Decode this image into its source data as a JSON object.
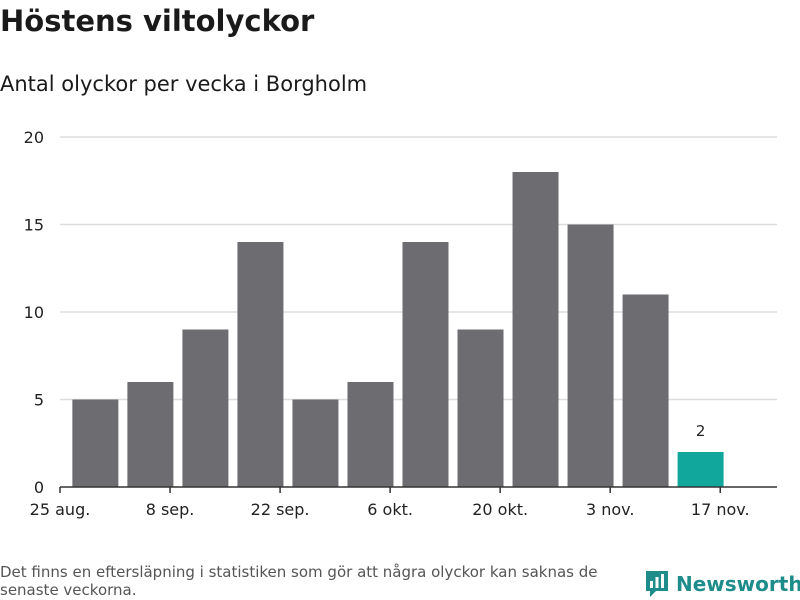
{
  "title": "Höstens viltolyckor",
  "subtitle": "Antal olyckor per vecka i Borgholm",
  "footnote": "Det finns en eftersläpning i statistiken som gör att några olyckor kan saknas de senaste veckorna.",
  "brand": {
    "name": "Newsworthy",
    "icon": "newsworthy-logo-icon",
    "color": "#1e8c8a"
  },
  "colors": {
    "bar": "#6d6c71",
    "highlight": "#12a79d",
    "grid": "#dddddd",
    "axis": "#333333"
  },
  "chart_data": {
    "type": "bar",
    "title": "Höstens viltolyckor",
    "subtitle": "Antal olyckor per vecka i Borgholm",
    "xlabel": "",
    "ylabel": "",
    "ylim": [
      0,
      20
    ],
    "yticks": [
      0,
      5,
      10,
      15,
      20
    ],
    "grid": true,
    "legend": "none",
    "x_tick_labels": [
      {
        "label": "25 aug.",
        "date": "2019-08-25"
      },
      {
        "label": "8 sep.",
        "date": "2019-09-08"
      },
      {
        "label": "22 sep.",
        "date": "2019-09-22"
      },
      {
        "label": "6 okt.",
        "date": "2019-10-06"
      },
      {
        "label": "20 okt.",
        "date": "2019-10-20"
      },
      {
        "label": "3 nov.",
        "date": "2019-11-03"
      },
      {
        "label": "17 nov.",
        "date": "2019-11-17"
      }
    ],
    "bars": [
      {
        "week_start": "2019-08-26",
        "value": 5,
        "highlight": false
      },
      {
        "week_start": "2019-09-02",
        "value": 6,
        "highlight": false
      },
      {
        "week_start": "2019-09-09",
        "value": 9,
        "highlight": false
      },
      {
        "week_start": "2019-09-16",
        "value": 14,
        "highlight": false
      },
      {
        "week_start": "2019-09-23",
        "value": 5,
        "highlight": false
      },
      {
        "week_start": "2019-09-30",
        "value": 6,
        "highlight": false
      },
      {
        "week_start": "2019-10-07",
        "value": 14,
        "highlight": false
      },
      {
        "week_start": "2019-10-14",
        "value": 9,
        "highlight": false
      },
      {
        "week_start": "2019-10-21",
        "value": 18,
        "highlight": false
      },
      {
        "week_start": "2019-10-28",
        "value": 15,
        "highlight": false
      },
      {
        "week_start": "2019-11-04",
        "value": 11,
        "highlight": false
      },
      {
        "week_start": "2019-11-11",
        "value": 2,
        "highlight": true,
        "data_label": "2"
      }
    ]
  }
}
